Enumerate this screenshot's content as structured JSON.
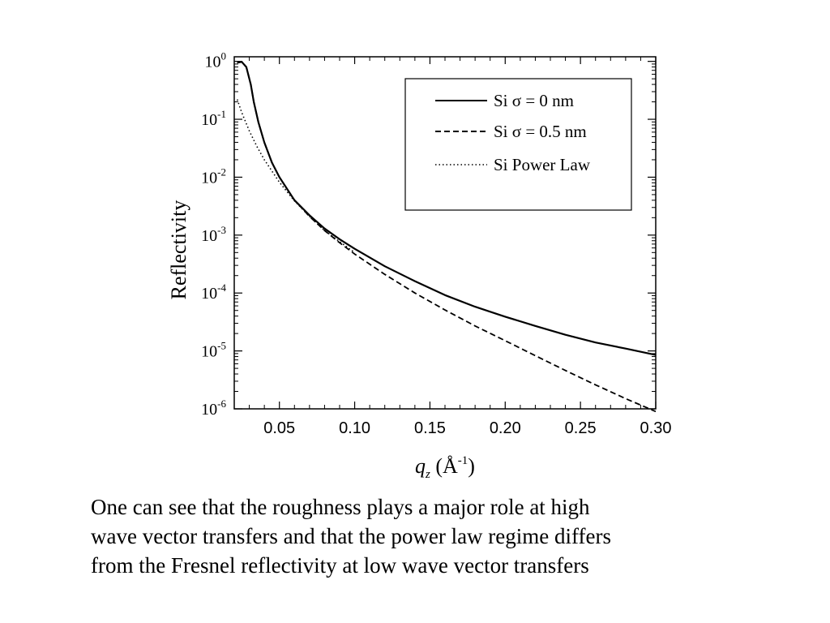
{
  "chart_data": {
    "type": "line",
    "xlabel": "q_z (Å⁻¹)",
    "ylabel": "Reflectivity",
    "x_ticks": [
      "0.05",
      "0.10",
      "0.15",
      "0.20",
      "0.25",
      "0.30"
    ],
    "y_ticks": [
      {
        "value": 1,
        "base": "10",
        "exp": "0"
      },
      {
        "value": 0.1,
        "base": "10",
        "exp": "-1"
      },
      {
        "value": 0.01,
        "base": "10",
        "exp": "-2"
      },
      {
        "value": 0.001,
        "base": "10",
        "exp": "-3"
      },
      {
        "value": 0.0001,
        "base": "10",
        "exp": "-4"
      },
      {
        "value": 1e-05,
        "base": "10",
        "exp": "-5"
      },
      {
        "value": 1e-06,
        "base": "10",
        "exp": "-6"
      }
    ],
    "xlim": [
      0.02,
      0.3
    ],
    "ylim": [
      1e-06,
      1.2
    ],
    "yscale": "log",
    "grid": false,
    "legend_position": "top-right",
    "series": [
      {
        "name": "Si σ = 0 nm",
        "style": "solid",
        "x": [
          0.022,
          0.025,
          0.028,
          0.031,
          0.033,
          0.036,
          0.04,
          0.045,
          0.05,
          0.06,
          0.07,
          0.08,
          0.09,
          0.1,
          0.12,
          0.14,
          0.16,
          0.18,
          0.2,
          0.22,
          0.24,
          0.26,
          0.28,
          0.3
        ],
        "y": [
          0.95,
          0.98,
          0.8,
          0.4,
          0.2,
          0.09,
          0.04,
          0.018,
          0.01,
          0.004,
          0.0022,
          0.0013,
          0.00085,
          0.00058,
          0.00029,
          0.00016,
          9.2e-05,
          5.8e-05,
          3.9e-05,
          2.7e-05,
          1.9e-05,
          1.4e-05,
          1.1e-05,
          8.5e-06
        ]
      },
      {
        "name": "Si σ = 0.5 nm",
        "style": "dashed",
        "x": [
          0.022,
          0.025,
          0.028,
          0.031,
          0.033,
          0.036,
          0.04,
          0.045,
          0.05,
          0.06,
          0.07,
          0.08,
          0.09,
          0.1,
          0.12,
          0.14,
          0.16,
          0.18,
          0.2,
          0.22,
          0.24,
          0.26,
          0.28,
          0.3
        ],
        "y": [
          0.95,
          0.98,
          0.8,
          0.4,
          0.2,
          0.09,
          0.04,
          0.018,
          0.01,
          0.004,
          0.0021,
          0.0012,
          0.00074,
          0.00047,
          0.00021,
          0.0001,
          5.1e-05,
          2.7e-05,
          1.5e-05,
          8.3e-06,
          4.6e-06,
          2.6e-06,
          1.5e-06,
          9e-07
        ]
      },
      {
        "name": "Si Power Law",
        "style": "dotted",
        "x": [
          0.022,
          0.025,
          0.03,
          0.035,
          0.04,
          0.05,
          0.06,
          0.07,
          0.08,
          0.09,
          0.1
        ],
        "y": [
          0.22,
          0.13,
          0.063,
          0.034,
          0.02,
          0.0082,
          0.0039,
          0.0021,
          0.0012,
          0.00077,
          0.0005
        ]
      }
    ]
  },
  "caption": {
    "lines": [
      "One can see that the roughness plays a major role at high",
      "wave vector transfers and that the power law regime differs",
      "from the Fresnel reflectivity at low wave vector transfers"
    ]
  }
}
